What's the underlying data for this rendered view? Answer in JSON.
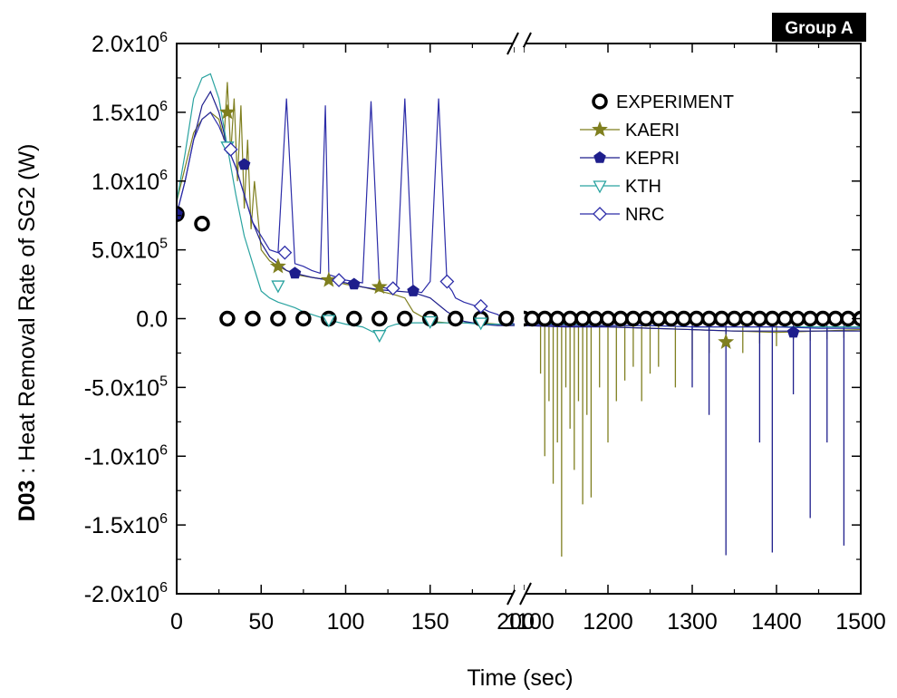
{
  "chart_data": {
    "type": "line",
    "badge": "Group A",
    "xlabel": "Time (sec)",
    "ylabel_bold": "D03",
    "ylabel_rest": " : Heat Removal Rate of SG2 (W)",
    "x_segments": [
      {
        "range": [
          0,
          200
        ],
        "ticks": [
          "0",
          "50",
          "100",
          "150",
          "200"
        ],
        "tick_values": [
          0,
          50,
          100,
          150,
          200
        ]
      },
      {
        "range": [
          1100,
          1500
        ],
        "ticks": [
          "1100",
          "1200",
          "1300",
          "1400",
          "1500"
        ],
        "tick_values": [
          1100,
          1200,
          1300,
          1400,
          1500
        ]
      }
    ],
    "ylim": [
      -2000000,
      2000000
    ],
    "y_ticks": [
      {
        "value": 2000000,
        "mant": "2.0x10",
        "exp": "6"
      },
      {
        "value": 1500000,
        "mant": "1.5x10",
        "exp": "6"
      },
      {
        "value": 1000000,
        "mant": "1.0x10",
        "exp": "6"
      },
      {
        "value": 500000,
        "mant": "5.0x10",
        "exp": "5"
      },
      {
        "value": 0,
        "mant": "0.0",
        "exp": ""
      },
      {
        "value": -500000,
        "mant": "-5.0x10",
        "exp": "5"
      },
      {
        "value": -1000000,
        "mant": "-1.0x10",
        "exp": "6"
      },
      {
        "value": -1500000,
        "mant": "-1.5x10",
        "exp": "6"
      },
      {
        "value": -2000000,
        "mant": "-2.0x10",
        "exp": "6"
      }
    ],
    "series": [
      {
        "name": "EXPERIMENT",
        "color": "#000000",
        "marker": "circle-open",
        "x": [
          0,
          15,
          30,
          45,
          60,
          75,
          90,
          105,
          120,
          135,
          150,
          165,
          180,
          195,
          1100,
          1110,
          1125,
          1140,
          1155,
          1170,
          1185,
          1200,
          1215,
          1230,
          1245,
          1260,
          1275,
          1290,
          1305,
          1320,
          1335,
          1350,
          1365,
          1380,
          1395,
          1410,
          1425,
          1440,
          1455,
          1470,
          1485,
          1500
        ],
        "y": [
          760000,
          690000,
          0,
          0,
          0,
          0,
          0,
          0,
          0,
          0,
          0,
          0,
          0,
          0,
          0,
          0,
          0,
          0,
          0,
          0,
          0,
          0,
          0,
          0,
          0,
          0,
          0,
          0,
          0,
          0,
          0,
          0,
          0,
          0,
          0,
          0,
          0,
          0,
          0,
          0,
          0,
          0
        ]
      },
      {
        "name": "KAERI",
        "color": "#7f7f1f",
        "marker": "star",
        "x": [
          0,
          5,
          10,
          15,
          20,
          25,
          28,
          30,
          32,
          34,
          36,
          38,
          40,
          42,
          44,
          46,
          50,
          55,
          60,
          70,
          80,
          90,
          100,
          110,
          120,
          130,
          135,
          140,
          150,
          160,
          170,
          180,
          190,
          200,
          1100,
          1150,
          1200,
          1250,
          1300,
          1350,
          1400,
          1450,
          1500
        ],
        "y": [
          850000,
          1100000,
          1350000,
          1450000,
          1500000,
          1450000,
          1300000,
          1720000,
          1200000,
          1600000,
          1000000,
          1550000,
          800000,
          1300000,
          650000,
          1000000,
          500000,
          420000,
          380000,
          320000,
          300000,
          280000,
          250000,
          230000,
          200000,
          170000,
          150000,
          50000,
          -20000,
          -30000,
          -30000,
          -30000,
          -40000,
          -40000,
          -40000,
          -40000,
          -60000,
          -70000,
          -80000,
          -90000,
          -100000,
          -90000,
          -80000
        ],
        "marker_x": [
          30,
          60,
          90,
          120,
          1340
        ],
        "marker_y": [
          1500000,
          380000,
          280000,
          230000,
          -170000
        ],
        "spikes_x": [
          1120,
          1125,
          1130,
          1135,
          1140,
          1145,
          1150,
          1155,
          1160,
          1165,
          1170,
          1175,
          1180,
          1190,
          1200,
          1210,
          1220,
          1230,
          1240,
          1250,
          1260,
          1280,
          1300,
          1320,
          1340,
          1360,
          1380,
          1400,
          1420,
          1440,
          1460,
          1480
        ],
        "spikes_y": [
          -400000,
          -1000000,
          -600000,
          -1200000,
          -900000,
          -1730000,
          -500000,
          -800000,
          -1100000,
          -600000,
          -1350000,
          -700000,
          -1300000,
          -500000,
          -900000,
          -600000,
          -450000,
          -350000,
          -600000,
          -400000,
          -350000,
          -500000,
          -300000,
          -250000,
          -200000,
          -250000,
          -180000,
          -200000,
          -150000,
          -160000,
          -150000,
          -140000
        ]
      },
      {
        "name": "KEPRI",
        "color": "#1e1e8c",
        "marker": "pentagon",
        "x": [
          0,
          5,
          10,
          15,
          20,
          25,
          30,
          35,
          40,
          45,
          50,
          55,
          60,
          65,
          70,
          80,
          90,
          100,
          110,
          120,
          130,
          140,
          150,
          160,
          170,
          180,
          190,
          200,
          1100,
          1150,
          1200,
          1250,
          1300,
          1350,
          1400,
          1450,
          1500
        ],
        "y": [
          760000,
          1000000,
          1300000,
          1550000,
          1650000,
          1500000,
          1250000,
          1100000,
          900000,
          700000,
          550000,
          450000,
          400000,
          350000,
          330000,
          300000,
          280000,
          260000,
          230000,
          210000,
          200000,
          190000,
          150000,
          50000,
          -20000,
          -40000,
          -50000,
          -50000,
          -50000,
          -60000,
          -60000,
          -70000,
          -80000,
          -90000,
          -90000,
          -90000,
          -90000
        ],
        "marker_x": [
          0,
          40,
          70,
          105,
          140,
          1420
        ],
        "marker_y": [
          760000,
          1120000,
          330000,
          250000,
          200000,
          -100000
        ],
        "spikes_x": [
          1300,
          1320,
          1340,
          1380,
          1395,
          1420,
          1440,
          1460,
          1480
        ],
        "spikes_y": [
          -500000,
          -700000,
          -1720000,
          -900000,
          -1700000,
          -550000,
          -1450000,
          -900000,
          -1650000
        ]
      },
      {
        "name": "KTH",
        "color": "#2aa3a0",
        "marker": "triangle-down-open",
        "x": [
          0,
          5,
          10,
          15,
          20,
          25,
          30,
          35,
          40,
          45,
          50,
          55,
          60,
          65,
          70,
          75,
          80,
          90,
          100,
          105,
          110,
          120,
          125,
          130,
          140,
          150,
          160,
          170,
          180,
          190,
          200,
          1100,
          1150,
          1200,
          1250,
          1300,
          1350,
          1400,
          1450,
          1500
        ],
        "y": [
          850000,
          1200000,
          1600000,
          1750000,
          1780000,
          1600000,
          1250000,
          900000,
          600000,
          400000,
          200000,
          150000,
          120000,
          100000,
          80000,
          50000,
          30000,
          -10000,
          -40000,
          -50000,
          -60000,
          -120000,
          -60000,
          -40000,
          -30000,
          -30000,
          -30000,
          -30000,
          -40000,
          -40000,
          -40000,
          -40000,
          -40000,
          -50000,
          -50000,
          -60000,
          -60000,
          -60000,
          -60000,
          -60000
        ],
        "marker_x": [
          30,
          60,
          90,
          120,
          150,
          180,
          210
        ],
        "marker_y": [
          1250000,
          240000,
          -10000,
          -120000,
          -20000,
          -30000,
          -40000
        ]
      },
      {
        "name": "NRC",
        "color": "#2c2ca8",
        "marker": "diamond-open",
        "x": [
          0,
          5,
          10,
          15,
          20,
          25,
          30,
          35,
          40,
          45,
          50,
          55,
          60,
          65,
          70,
          75,
          80,
          85,
          88,
          90,
          95,
          100,
          110,
          115,
          120,
          125,
          130,
          135,
          140,
          145,
          150,
          155,
          160,
          163,
          165,
          170,
          175,
          180,
          185,
          190,
          195,
          200,
          1100,
          1150,
          1200,
          1250,
          1300,
          1350,
          1400,
          1450,
          1500
        ],
        "y": [
          760000,
          1000000,
          1300000,
          1450000,
          1500000,
          1400000,
          1250000,
          1100000,
          900000,
          700000,
          600000,
          500000,
          480000,
          1600000,
          400000,
          380000,
          350000,
          330000,
          1550000,
          320000,
          300000,
          280000,
          260000,
          1580000,
          230000,
          220000,
          210000,
          1600000,
          200000,
          190000,
          270000,
          1600000,
          250000,
          200000,
          150000,
          120000,
          100000,
          80000,
          50000,
          30000,
          -20000,
          -40000,
          -40000,
          -50000,
          -50000,
          -50000,
          -60000,
          -60000,
          -60000,
          -70000,
          -70000
        ],
        "marker_x": [
          32,
          64,
          96,
          128,
          160,
          180,
          210
        ],
        "marker_y": [
          1230000,
          480000,
          280000,
          220000,
          270000,
          90000,
          -20000
        ]
      }
    ]
  }
}
